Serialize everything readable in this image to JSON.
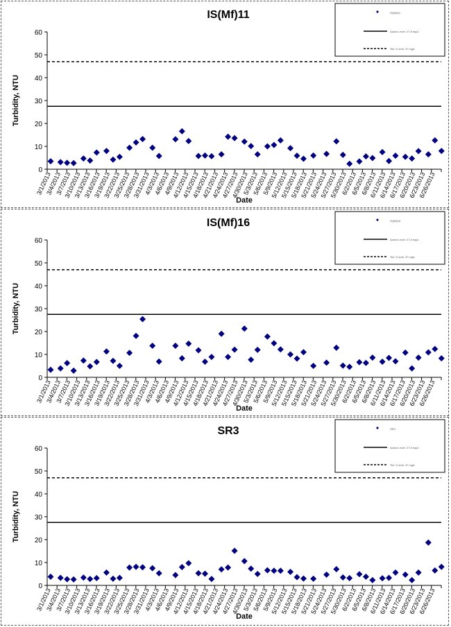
{
  "chart_data": [
    {
      "type": "scatter",
      "title": "IS(Mf)11",
      "xlabel": "Date",
      "ylabel": "Turbidity, NTU",
      "ylim": [
        0,
        60
      ],
      "yticks": [
        0,
        10,
        20,
        30,
        40,
        50,
        60
      ],
      "grid": false,
      "legend_position": "top-right",
      "x_tick_labels": [
        "3/1/2013",
        "3/4/2013",
        "3/7/2013",
        "3/10/2013",
        "3/13/2013",
        "3/16/2013",
        "3/19/2013",
        "3/22/2013",
        "3/25/2013",
        "3/28/2013",
        "3/31/2013",
        "4/3/2013",
        "4/6/2013",
        "4/9/2013",
        "4/12/2013",
        "4/15/2013",
        "4/18/2013",
        "4/21/2013",
        "4/24/2013",
        "4/27/2013",
        "4/30/2013",
        "5/3/2013",
        "5/6/2013",
        "5/9/2013",
        "5/12/2013",
        "5/15/2013",
        "5/18/2013",
        "5/21/2013",
        "5/24/2013",
        "5/27/2013",
        "5/30/2013",
        "6/2/2013",
        "6/5/2013",
        "6/8/2013",
        "6/11/2013",
        "6/14/2013",
        "6/17/2013",
        "6/20/2013",
        "6/23/2013",
        "6/26/2013"
      ],
      "series": [
        {
          "name": "IS(Mf)11",
          "color": "#000080",
          "marker": "diamond",
          "points": [
            [
              "3/1/2013",
              3.5
            ],
            [
              "3/4/2013",
              3.1
            ],
            [
              "3/6/2013",
              2.8
            ],
            [
              "3/8/2013",
              2.7
            ],
            [
              "3/11/2013",
              4.7
            ],
            [
              "3/13/2013",
              3.8
            ],
            [
              "3/15/2013",
              7.3
            ],
            [
              "3/18/2013",
              8.0
            ],
            [
              "3/20/2013",
              4.2
            ],
            [
              "3/22/2013",
              5.4
            ],
            [
              "3/25/2013",
              9.4
            ],
            [
              "3/27/2013",
              11.7
            ],
            [
              "3/29/2013",
              13.2
            ],
            [
              "4/1/2013",
              9.4
            ],
            [
              "4/3/2013",
              5.8
            ],
            [
              "4/8/2013",
              13.1
            ],
            [
              "4/10/2013",
              16.6
            ],
            [
              "4/12/2013",
              12.3
            ],
            [
              "4/15/2013",
              5.8
            ],
            [
              "4/17/2013",
              6.0
            ],
            [
              "4/19/2013",
              5.7
            ],
            [
              "4/22/2013",
              6.5
            ],
            [
              "4/24/2013",
              14.2
            ],
            [
              "4/26/2013",
              13.6
            ],
            [
              "4/29/2013",
              12.1
            ],
            [
              "5/1/2013",
              10.1
            ],
            [
              "5/3/2013",
              6.5
            ],
            [
              "5/6/2013",
              10.0
            ],
            [
              "5/8/2013",
              10.6
            ],
            [
              "5/10/2013",
              12.6
            ],
            [
              "5/13/2013",
              9.2
            ],
            [
              "5/15/2013",
              5.9
            ],
            [
              "5/17/2013",
              4.6
            ],
            [
              "5/20/2013",
              6.0
            ],
            [
              "5/24/2013",
              6.7
            ],
            [
              "5/27/2013",
              12.2
            ],
            [
              "5/29/2013",
              6.3
            ],
            [
              "5/31/2013",
              2.4
            ],
            [
              "6/3/2013",
              3.4
            ],
            [
              "6/5/2013",
              5.6
            ],
            [
              "6/7/2013",
              4.9
            ],
            [
              "6/10/2013",
              7.5
            ],
            [
              "6/12/2013",
              3.6
            ],
            [
              "6/14/2013",
              5.9
            ],
            [
              "6/17/2013",
              5.4
            ],
            [
              "6/19/2013",
              4.7
            ],
            [
              "6/21/2013",
              7.9
            ],
            [
              "6/24/2013",
              6.5
            ],
            [
              "6/26/2013",
              12.6
            ],
            [
              "6/28/2013",
              8.0
            ]
          ]
        }
      ],
      "reference_lines": [
        {
          "name": "Action Level: 27.5 mg/L",
          "value": 27.5,
          "style": "solid"
        },
        {
          "name": "Tier 2 Limit: 47 mg/L",
          "value": 47,
          "style": "dashed"
        }
      ]
    },
    {
      "type": "scatter",
      "title": "IS(Mf)16",
      "xlabel": "Date",
      "ylabel": "Turbidity, NTU",
      "ylim": [
        0,
        60
      ],
      "yticks": [
        0,
        10,
        20,
        30,
        40,
        50,
        60
      ],
      "grid": false,
      "legend_position": "top-right",
      "x_tick_labels": [
        "3/1/2013",
        "3/4/2013",
        "3/7/2013",
        "3/10/2013",
        "3/13/2013",
        "3/16/2013",
        "3/19/2013",
        "3/22/2013",
        "3/25/2013",
        "3/28/2013",
        "3/31/2013",
        "4/3/2013",
        "4/6/2013",
        "4/9/2013",
        "4/12/2013",
        "4/15/2013",
        "4/18/2013",
        "4/21/2013",
        "4/24/2013",
        "4/27/2013",
        "4/30/2013",
        "5/3/2013",
        "5/6/2013",
        "5/9/2013",
        "5/12/2013",
        "5/15/2013",
        "5/18/2013",
        "5/21/2013",
        "5/24/2013",
        "5/27/2013",
        "5/30/2013",
        "6/2/2013",
        "6/5/2013",
        "6/8/2013",
        "6/11/2013",
        "6/14/2013",
        "6/17/2013",
        "6/20/2013",
        "6/23/2013",
        "6/26/2013"
      ],
      "series": [
        {
          "name": "IS(Mf)16",
          "color": "#000080",
          "marker": "diamond",
          "points": [
            [
              "3/1/2013",
              3.3
            ],
            [
              "3/4/2013",
              3.9
            ],
            [
              "3/6/2013",
              6.2
            ],
            [
              "3/8/2013",
              2.9
            ],
            [
              "3/11/2013",
              7.3
            ],
            [
              "3/13/2013",
              4.8
            ],
            [
              "3/15/2013",
              6.7
            ],
            [
              "3/18/2013",
              11.3
            ],
            [
              "3/20/2013",
              7.2
            ],
            [
              "3/22/2013",
              5.0
            ],
            [
              "3/25/2013",
              10.7
            ],
            [
              "3/27/2013",
              18.1
            ],
            [
              "3/29/2013",
              25.4
            ],
            [
              "4/1/2013",
              13.8
            ],
            [
              "4/3/2013",
              6.9
            ],
            [
              "4/8/2013",
              13.8
            ],
            [
              "4/10/2013",
              8.3
            ],
            [
              "4/12/2013",
              14.7
            ],
            [
              "4/15/2013",
              11.8
            ],
            [
              "4/17/2013",
              6.8
            ],
            [
              "4/19/2013",
              8.9
            ],
            [
              "4/22/2013",
              19.0
            ],
            [
              "4/24/2013",
              8.9
            ],
            [
              "4/26/2013",
              12.1
            ],
            [
              "4/29/2013",
              21.3
            ],
            [
              "5/1/2013",
              7.7
            ],
            [
              "5/3/2013",
              12.0
            ],
            [
              "5/6/2013",
              17.8
            ],
            [
              "5/8/2013",
              14.9
            ],
            [
              "5/10/2013",
              12.2
            ],
            [
              "5/13/2013",
              10.0
            ],
            [
              "5/15/2013",
              8.2
            ],
            [
              "5/17/2013",
              11.0
            ],
            [
              "5/20/2013",
              5.0
            ],
            [
              "5/24/2013",
              6.4
            ],
            [
              "5/27/2013",
              12.9
            ],
            [
              "5/29/2013",
              5.1
            ],
            [
              "5/31/2013",
              4.6
            ],
            [
              "6/3/2013",
              6.6
            ],
            [
              "6/5/2013",
              6.3
            ],
            [
              "6/7/2013",
              8.6
            ],
            [
              "6/10/2013",
              6.8
            ],
            [
              "6/12/2013",
              8.5
            ],
            [
              "6/14/2013",
              7.0
            ],
            [
              "6/17/2013",
              10.8
            ],
            [
              "6/19/2013",
              3.9
            ],
            [
              "6/21/2013",
              8.6
            ],
            [
              "6/24/2013",
              10.9
            ],
            [
              "6/26/2013",
              12.4
            ],
            [
              "6/28/2013",
              8.3
            ]
          ]
        }
      ],
      "reference_lines": [
        {
          "name": "Action Level: 27.5 mg/L",
          "value": 27.5,
          "style": "solid"
        },
        {
          "name": "Tier 2 Limit: 47 mg/L",
          "value": 47,
          "style": "dashed"
        }
      ]
    },
    {
      "type": "scatter",
      "title": "SR3",
      "xlabel": "Date",
      "ylabel": "Turbidity, NTU",
      "ylim": [
        0,
        60
      ],
      "yticks": [
        0,
        10,
        20,
        30,
        40,
        50,
        60
      ],
      "grid": false,
      "legend_position": "top-right",
      "x_tick_labels": [
        "3/1/2013",
        "3/4/2013",
        "3/7/2013",
        "3/10/2013",
        "3/13/2013",
        "3/16/2013",
        "3/19/2013",
        "3/22/2013",
        "3/25/2013",
        "3/28/2013",
        "3/31/2013",
        "4/3/2013",
        "4/6/2013",
        "4/9/2013",
        "4/12/2013",
        "4/15/2013",
        "4/18/2013",
        "4/21/2013",
        "4/24/2013",
        "4/27/2013",
        "4/30/2013",
        "5/3/2013",
        "5/6/2013",
        "5/9/2013",
        "5/12/2013",
        "5/15/2013",
        "5/18/2013",
        "5/21/2013",
        "5/24/2013",
        "5/27/2013",
        "5/30/2013",
        "6/2/2013",
        "6/5/2013",
        "6/8/2013",
        "6/11/2013",
        "6/14/2013",
        "6/17/2013",
        "6/20/2013",
        "6/23/2013",
        "6/26/2013"
      ],
      "series": [
        {
          "name": "SR3",
          "color": "#000080",
          "marker": "diamond",
          "points": [
            [
              "3/1/2013",
              3.8
            ],
            [
              "3/4/2013",
              3.3
            ],
            [
              "3/6/2013",
              2.7
            ],
            [
              "3/8/2013",
              2.6
            ],
            [
              "3/11/2013",
              3.4
            ],
            [
              "3/13/2013",
              2.8
            ],
            [
              "3/15/2013",
              3.2
            ],
            [
              "3/18/2013",
              5.6
            ],
            [
              "3/20/2013",
              2.9
            ],
            [
              "3/22/2013",
              3.3
            ],
            [
              "3/25/2013",
              7.8
            ],
            [
              "3/27/2013",
              8.1
            ],
            [
              "3/29/2013",
              7.9
            ],
            [
              "4/1/2013",
              7.5
            ],
            [
              "4/3/2013",
              5.3
            ],
            [
              "4/8/2013",
              4.5
            ],
            [
              "4/10/2013",
              8.0
            ],
            [
              "4/12/2013",
              9.7
            ],
            [
              "4/15/2013",
              5.3
            ],
            [
              "4/17/2013",
              5.1
            ],
            [
              "4/19/2013",
              2.8
            ],
            [
              "4/22/2013",
              7.0
            ],
            [
              "4/24/2013",
              7.8
            ],
            [
              "4/26/2013",
              15.1
            ],
            [
              "4/29/2013",
              10.6
            ],
            [
              "5/1/2013",
              7.3
            ],
            [
              "5/3/2013",
              5.0
            ],
            [
              "5/6/2013",
              6.6
            ],
            [
              "5/8/2013",
              6.4
            ],
            [
              "5/10/2013",
              6.4
            ],
            [
              "5/13/2013",
              5.9
            ],
            [
              "5/15/2013",
              3.6
            ],
            [
              "5/17/2013",
              3.0
            ],
            [
              "5/20/2013",
              2.9
            ],
            [
              "5/24/2013",
              4.7
            ],
            [
              "5/27/2013",
              7.1
            ],
            [
              "5/29/2013",
              3.5
            ],
            [
              "5/31/2013",
              3.2
            ],
            [
              "6/3/2013",
              4.9
            ],
            [
              "6/5/2013",
              3.8
            ],
            [
              "6/7/2013",
              2.3
            ],
            [
              "6/10/2013",
              3.1
            ],
            [
              "6/12/2013",
              3.3
            ],
            [
              "6/14/2013",
              5.6
            ],
            [
              "6/17/2013",
              4.7
            ],
            [
              "6/19/2013",
              2.3
            ],
            [
              "6/21/2013",
              5.6
            ],
            [
              "6/24/2013",
              18.7
            ],
            [
              "6/26/2013",
              6.5
            ],
            [
              "6/28/2013",
              8.1
            ]
          ]
        }
      ],
      "reference_lines": [
        {
          "name": "Action Level: 27.5 mg/L",
          "value": 27.5,
          "style": "solid"
        },
        {
          "name": "Tier 2 Limit: 47 mg/L",
          "value": 47,
          "style": "dashed"
        }
      ]
    }
  ]
}
